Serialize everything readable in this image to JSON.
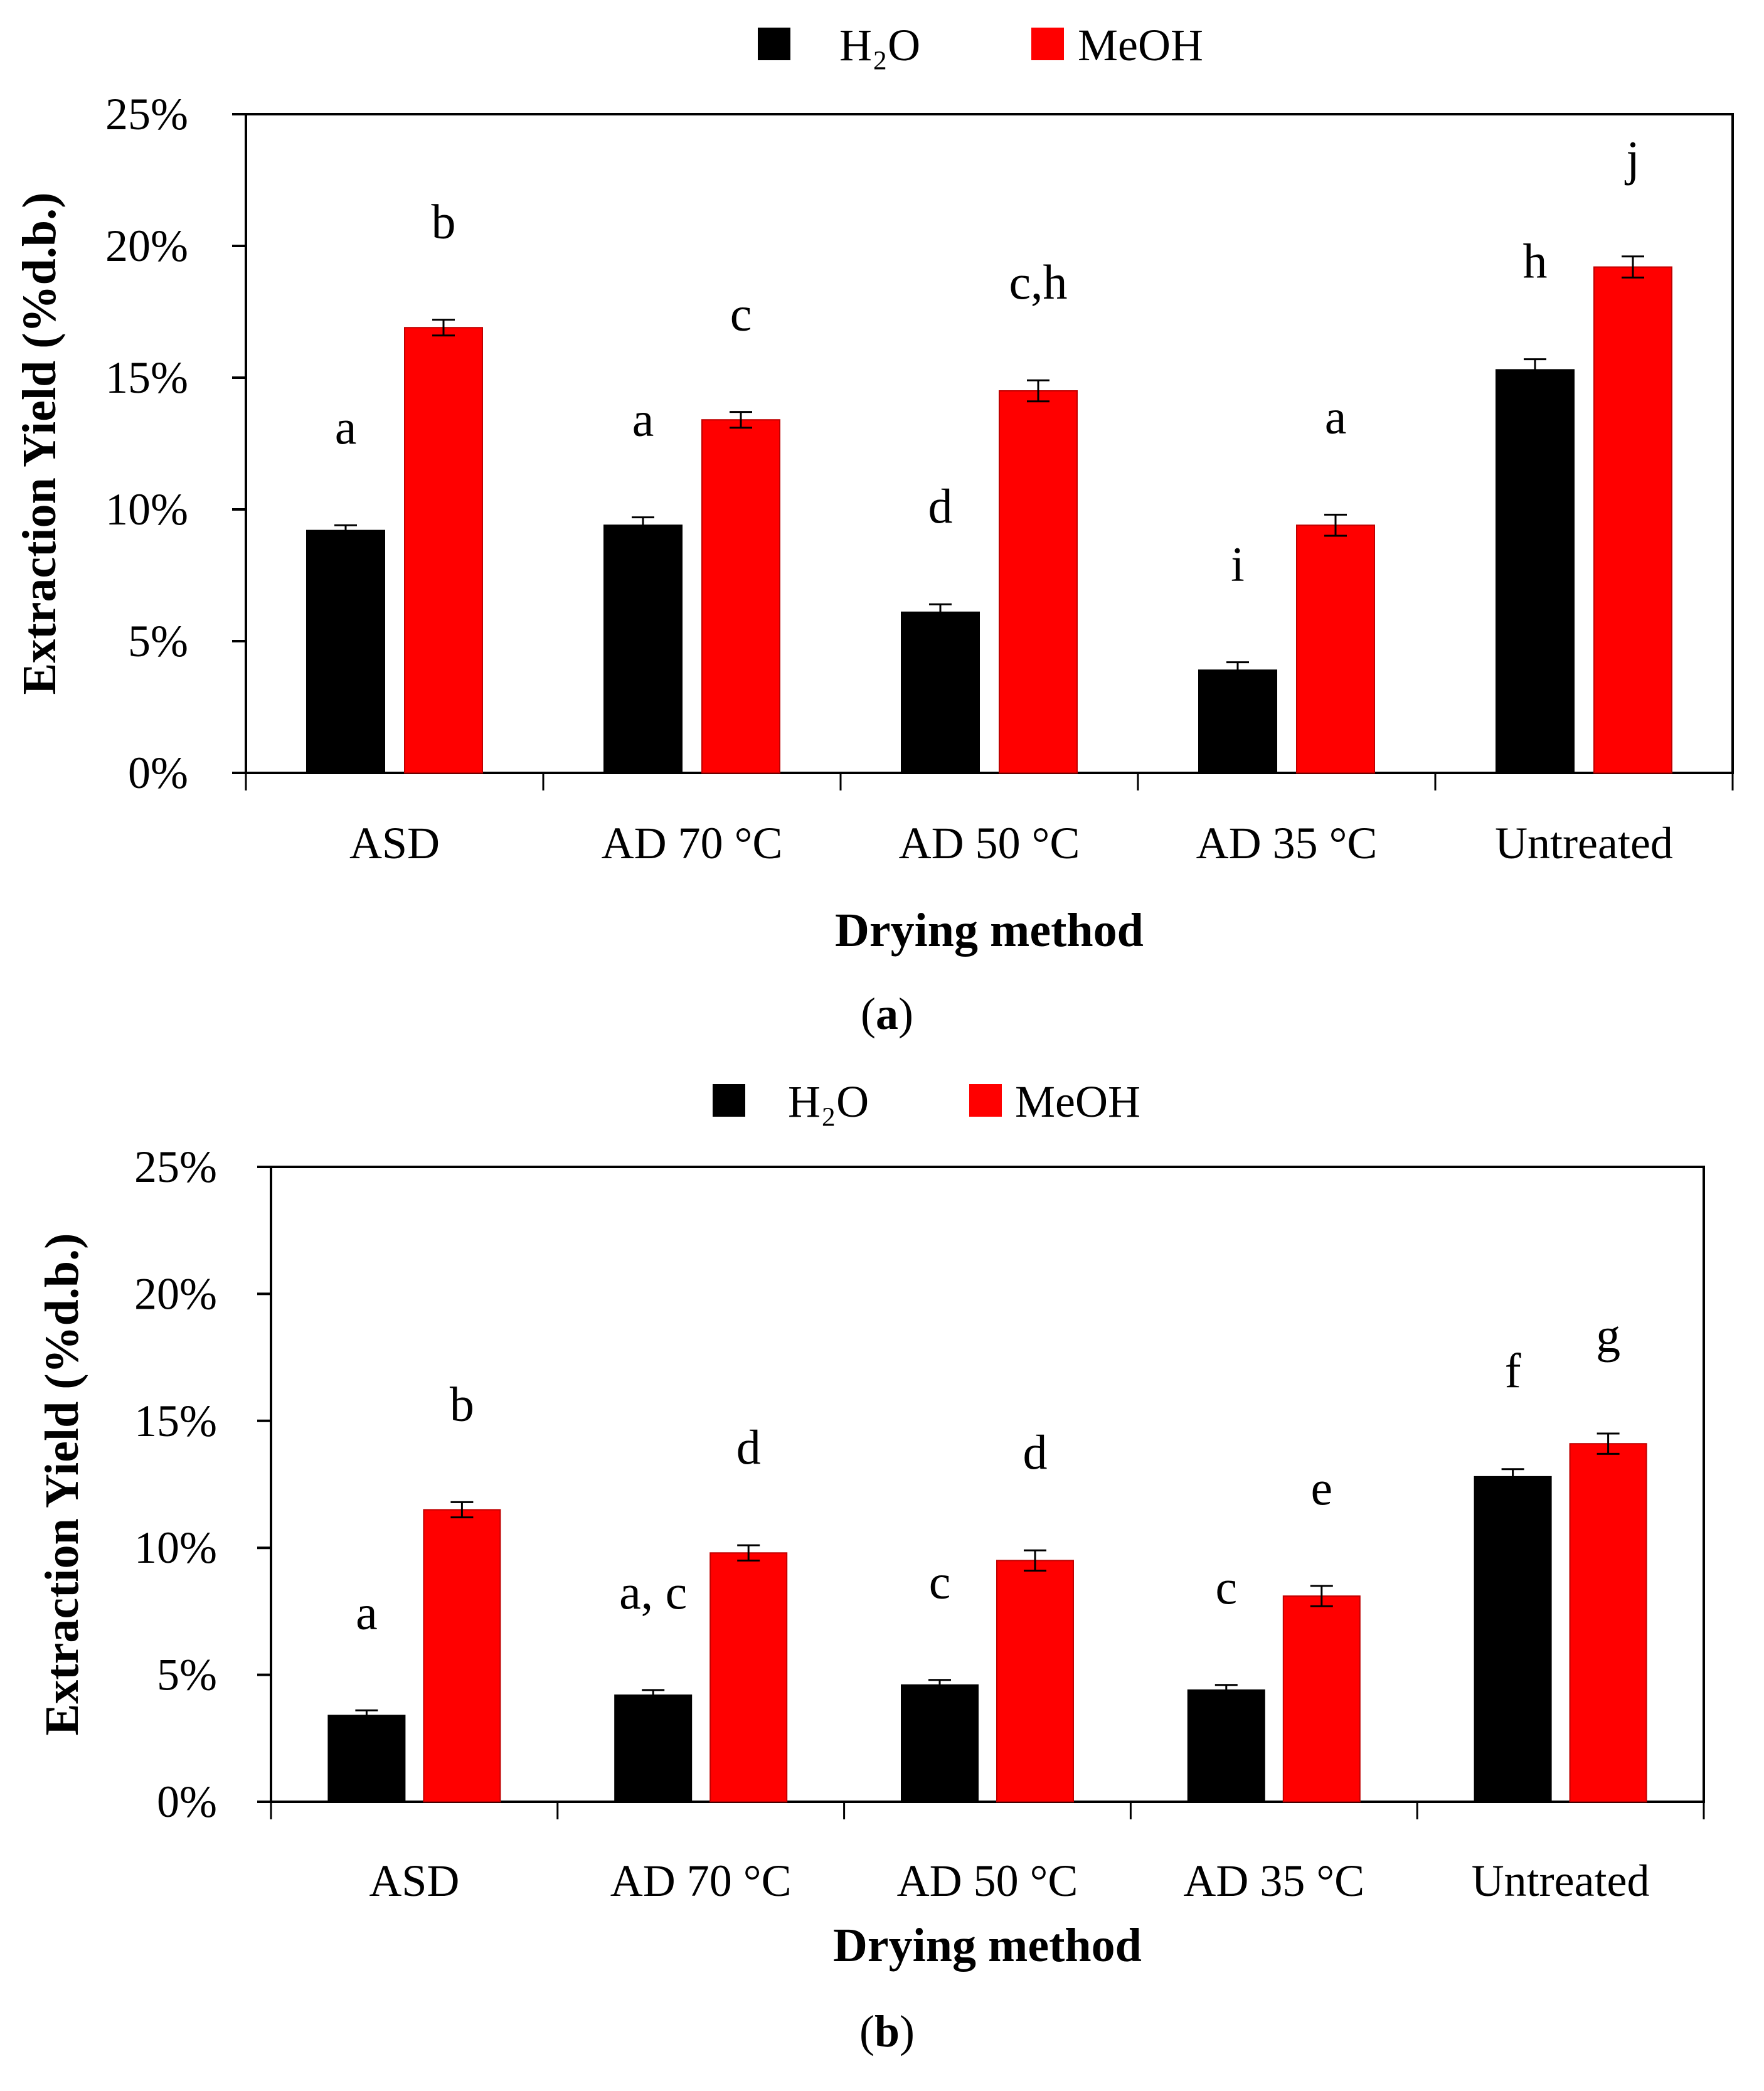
{
  "chart_data": [
    {
      "type": "bar",
      "panel": "a",
      "categories": [
        "ASD",
        "AD 70 °C",
        "AD 50 °C",
        "AD 35 °C",
        "Untreated"
      ],
      "series": [
        {
          "name": "H2O",
          "color": "#000000",
          "values": [
            0.092,
            0.094,
            0.061,
            0.039,
            0.153
          ],
          "errors": [
            0.002,
            0.003,
            0.003,
            0.003,
            0.004
          ]
        },
        {
          "name": "MeOH",
          "color": "#ff0000",
          "values": [
            0.169,
            0.134,
            0.145,
            0.094,
            0.192
          ],
          "errors": [
            0.003,
            0.003,
            0.004,
            0.004,
            0.004
          ]
        }
      ],
      "significance": [
        [
          "a",
          "b"
        ],
        [
          "a",
          "c"
        ],
        [
          "d",
          "c,h"
        ],
        [
          "i",
          "a"
        ],
        [
          "h",
          "j"
        ]
      ],
      "ylim": [
        0,
        0.25
      ],
      "yticks": [
        0,
        0.05,
        0.1,
        0.15,
        0.2,
        0.25
      ],
      "ytick_labels": [
        "0%",
        "5%",
        "10%",
        "15%",
        "20%",
        "25%"
      ],
      "xlabel": "Drying method",
      "ylabel": "Extraction Yield (%d.b.)",
      "legend": {
        "position": "top",
        "entries": [
          "H₂O",
          "MeOH"
        ]
      },
      "panel_label": {
        "open": "(",
        "letter": "a",
        "close": ")"
      }
    },
    {
      "type": "bar",
      "panel": "b",
      "categories": [
        "ASD",
        "AD 70 °C",
        "AD 50 °C",
        "AD 35 °C",
        "Untreated"
      ],
      "series": [
        {
          "name": "H2O",
          "color": "#000000",
          "values": [
            0.034,
            0.042,
            0.046,
            0.044,
            0.128
          ],
          "errors": [
            0.002,
            0.002,
            0.002,
            0.002,
            0.003
          ]
        },
        {
          "name": "MeOH",
          "color": "#ff0000",
          "values": [
            0.115,
            0.098,
            0.095,
            0.081,
            0.141
          ],
          "errors": [
            0.003,
            0.003,
            0.004,
            0.004,
            0.004
          ]
        }
      ],
      "significance": [
        [
          "a",
          "b"
        ],
        [
          "a, c",
          "d"
        ],
        [
          "c",
          "d"
        ],
        [
          "c",
          "e"
        ],
        [
          "f",
          "g"
        ]
      ],
      "ylim": [
        0,
        0.25
      ],
      "yticks": [
        0,
        0.05,
        0.1,
        0.15,
        0.2,
        0.25
      ],
      "ytick_labels": [
        "0%",
        "5%",
        "10%",
        "15%",
        "20%",
        "25%"
      ],
      "xlabel": "Drying method",
      "ylabel": "Extraction Yield (%d.b.)",
      "legend": {
        "position": "top",
        "entries": [
          "H₂O",
          "MeOH"
        ]
      },
      "panel_label": {
        "open": "(",
        "letter": "b",
        "close": ")"
      }
    }
  ]
}
